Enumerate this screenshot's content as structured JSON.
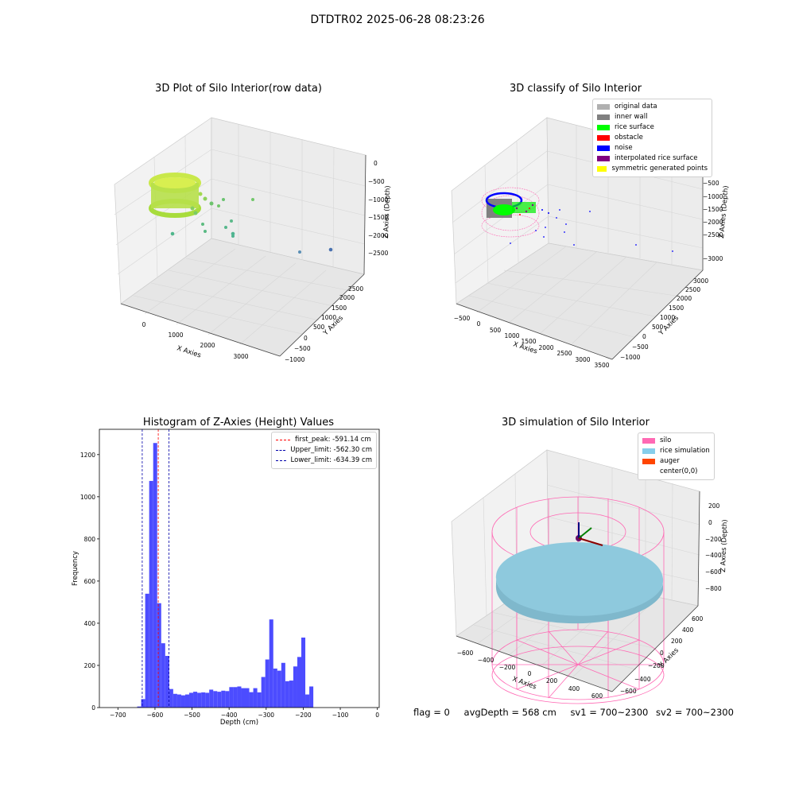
{
  "figure": {
    "suptitle": "DTDTR02 2025-06-28 08:23:26",
    "status": {
      "flag": "flag = 0",
      "avg_depth": "avgDepth = 568 cm",
      "sv1": "sv1 = 700~2300",
      "sv2": "sv2 = 700~2300"
    }
  },
  "colors": {
    "hist_bar": "#4c4cff",
    "peak_line": "#ff0000",
    "limit_line": "#0000aa",
    "pane_light": "#f2f2f2",
    "pane_dark": "#e6e6e6",
    "silo_wire": "#ff69b4",
    "rice_sim": "#8ec9dd"
  },
  "chart_data": [
    {
      "type": "scatter",
      "title": "3D Plot of Silo Interior(row data)",
      "xlabel": "X Axies",
      "ylabel": "Y Axies",
      "zlabel": "Z Axies (Depth)",
      "x_ticks": [
        "0",
        "1000",
        "2000",
        "3000"
      ],
      "y_ticks": [
        "−1000",
        "−500",
        "0",
        "500",
        "1000",
        "1500",
        "2000",
        "2500"
      ],
      "z_ticks": [
        "0",
        "−500",
        "−1000",
        "−1500",
        "−2000",
        "−2500"
      ],
      "grid": true,
      "note_points": "dense ring of points near origin colored yellow-green; sparse scattered points extending outward colored green to blue"
    },
    {
      "type": "scatter",
      "title": "3D classify of Silo Interior",
      "xlabel": "X Axies",
      "ylabel": "Y Axies",
      "zlabel": "Z Axies (Depth)",
      "x_ticks": [
        "−500",
        "0",
        "500",
        "1000",
        "1500",
        "2000",
        "2500",
        "3000",
        "3500"
      ],
      "y_ticks": [
        "−1000",
        "−500",
        "0",
        "500",
        "1000",
        "1500",
        "2000",
        "2500",
        "3000"
      ],
      "z_ticks": [
        "0",
        "−500",
        "−1000",
        "−1500",
        "−2000",
        "−2500",
        "−3000"
      ],
      "grid": true,
      "legend_position": "top-right",
      "legend": [
        {
          "label": "original data",
          "color": "#b0b0b0"
        },
        {
          "label": "inner wall",
          "color": "#808080"
        },
        {
          "label": "rice surface",
          "color": "#00ff00"
        },
        {
          "label": "obstacle",
          "color": "#ff0000"
        },
        {
          "label": "noise",
          "color": "#0000ff"
        },
        {
          "label": "interpolated rice surface",
          "color": "#800080"
        },
        {
          "label": "symmetric generated points",
          "color": "#ffff00"
        }
      ]
    },
    {
      "type": "bar",
      "title": "Histogram of Z-Axies (Height) Values",
      "xlabel": "Depth (cm)",
      "ylabel": "Frequency",
      "xlim": [
        -750,
        5
      ],
      "ylim": [
        0,
        1320
      ],
      "x_ticks": [
        -700,
        -600,
        -500,
        -400,
        -300,
        -200,
        -100,
        0
      ],
      "x_tick_labels": [
        "−700",
        "−600",
        "−500",
        "−400",
        "−300",
        "−200",
        "−100",
        "0"
      ],
      "y_ticks": [
        0,
        200,
        400,
        600,
        800,
        1000,
        1200
      ],
      "y_tick_labels": [
        "0",
        "200",
        "400",
        "600",
        "800",
        "1000",
        "1200"
      ],
      "bin_start": -648,
      "bin_width": 10.8,
      "values": [
        5,
        40,
        540,
        1075,
        1255,
        495,
        305,
        245,
        88,
        65,
        62,
        58,
        62,
        70,
        75,
        70,
        72,
        70,
        85,
        78,
        75,
        80,
        78,
        97,
        97,
        100,
        92,
        92,
        73,
        92,
        72,
        145,
        228,
        418,
        185,
        175,
        212,
        125,
        128,
        195,
        240,
        332,
        62,
        100
      ],
      "vlines": [
        {
          "label": "first_peak: -591.14 cm",
          "x": -591.14,
          "style": "peak"
        },
        {
          "label": "Upper_limit: -562.30 cm",
          "x": -562.3,
          "style": "limit"
        },
        {
          "label": "Lower_limit: -634.39 cm",
          "x": -634.39,
          "style": "limit"
        }
      ],
      "legend_position": "top-right",
      "grid": false
    },
    {
      "type": "scatter",
      "title": "3D simulation of Silo Interior",
      "xlabel": "X Axies",
      "ylabel": "Y Axies",
      "zlabel": "Z Axies (Depth)",
      "x_ticks": [
        "−600",
        "−400",
        "−200",
        "0",
        "200",
        "400",
        "600"
      ],
      "y_ticks": [
        "−600",
        "−400",
        "−200",
        "0",
        "200",
        "400",
        "600"
      ],
      "z_ticks": [
        "200",
        "0",
        "−200",
        "−400",
        "−600",
        "−800"
      ],
      "grid": true,
      "legend_position": "top-right",
      "legend": [
        {
          "label": "silo",
          "color": "#ff69b4"
        },
        {
          "label": "rice simulation",
          "color": "#87ceeb"
        },
        {
          "label": "auger",
          "color": "#ff4500"
        },
        {
          "label": "center(0,0)",
          "color": "#ffffff"
        }
      ]
    }
  ]
}
